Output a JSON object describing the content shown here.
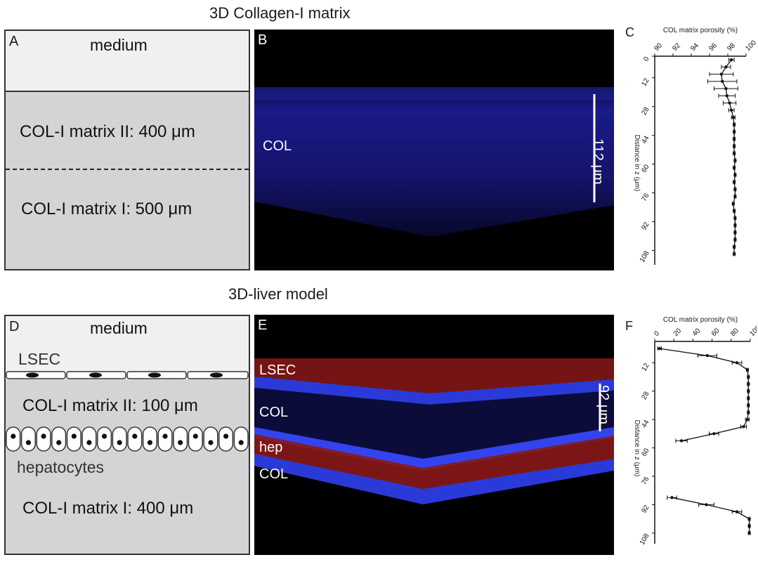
{
  "top_title": "3D Collagen-I matrix",
  "bottom_title": "3D-liver model",
  "panel_a": {
    "letter": "A",
    "medium": "medium",
    "matrix_ii": "COL-I matrix II: 400 μm",
    "matrix_i": "COL-I matrix I: 500 μm"
  },
  "panel_b": {
    "letter": "B",
    "col": "COL",
    "scale": "112 μm"
  },
  "panel_d": {
    "letter": "D",
    "medium": "medium",
    "lsec": "LSEC",
    "matrix_ii": "COL-I matrix II: 100 μm",
    "hepatocytes": "hepatocytes",
    "matrix_i": "COL-I matrix I: 400 μm"
  },
  "panel_e": {
    "letter": "E",
    "lsec": "LSEC",
    "col1": "COL",
    "hep": "hep",
    "col2": "COL",
    "scale": "92 μm"
  },
  "chart_data": [
    {
      "panel": "C",
      "type": "line",
      "title": "COL matrix porosity (%)",
      "xlabel": "COL matrix porosity (%)",
      "ylabel": "Distance in z (μm)",
      "x_ticks": [
        "90",
        "92",
        "94",
        "96",
        "98",
        "100"
      ],
      "y_ticks": [
        "0",
        "12",
        "28",
        "44",
        "60",
        "76",
        "92",
        "108"
      ],
      "xlim": [
        90,
        100
      ],
      "ylim": [
        0,
        116
      ],
      "x_axis_position": "top",
      "series": [
        {
          "points": [
            {
              "z": 2,
              "porosity": 98.4,
              "err": 0.3
            },
            {
              "z": 6,
              "porosity": 97.8,
              "err": 0.5
            },
            {
              "z": 10,
              "porosity": 97.3,
              "err": 1.3
            },
            {
              "z": 14,
              "porosity": 97.4,
              "err": 1.6
            },
            {
              "z": 18,
              "porosity": 97.8,
              "err": 1.3
            },
            {
              "z": 22,
              "porosity": 97.9,
              "err": 0.9
            },
            {
              "z": 26,
              "porosity": 98.2,
              "err": 0.7
            },
            {
              "z": 30,
              "porosity": 98.4,
              "err": 0.3
            },
            {
              "z": 34,
              "porosity": 98.6,
              "err": 0.2
            },
            {
              "z": 38,
              "porosity": 98.7,
              "err": 0.1
            },
            {
              "z": 42,
              "porosity": 98.7,
              "err": 0.1
            },
            {
              "z": 46,
              "porosity": 98.7,
              "err": 0.1
            },
            {
              "z": 50,
              "porosity": 98.7,
              "err": 0.1
            },
            {
              "z": 54,
              "porosity": 98.7,
              "err": 0.1
            },
            {
              "z": 58,
              "porosity": 98.8,
              "err": 0.1
            },
            {
              "z": 62,
              "porosity": 98.7,
              "err": 0.1
            },
            {
              "z": 66,
              "porosity": 98.8,
              "err": 0.1
            },
            {
              "z": 70,
              "porosity": 98.7,
              "err": 0.1
            },
            {
              "z": 74,
              "porosity": 98.8,
              "err": 0.1
            },
            {
              "z": 78,
              "porosity": 98.8,
              "err": 0.1
            },
            {
              "z": 82,
              "porosity": 98.6,
              "err": 0.1
            },
            {
              "z": 86,
              "porosity": 98.7,
              "err": 0.1
            },
            {
              "z": 90,
              "porosity": 98.8,
              "err": 0.1
            },
            {
              "z": 94,
              "porosity": 98.8,
              "err": 0.1
            },
            {
              "z": 98,
              "porosity": 98.8,
              "err": 0.1
            },
            {
              "z": 102,
              "porosity": 98.8,
              "err": 0.1
            },
            {
              "z": 106,
              "porosity": 98.7,
              "err": 0.1
            },
            {
              "z": 110,
              "porosity": 98.7,
              "err": 0.1
            }
          ]
        }
      ]
    },
    {
      "panel": "F",
      "type": "line",
      "title": "COL matrix porosity (%)",
      "xlabel": "COL matrix porosity (%)",
      "ylabel": "Distance in z (μm)",
      "x_ticks": [
        "0",
        "20",
        "40",
        "60",
        "80",
        "100"
      ],
      "y_ticks": [
        "12",
        "28",
        "44",
        "60",
        "76",
        "92",
        "108"
      ],
      "xlim": [
        0,
        100
      ],
      "ylim": [
        0,
        114
      ],
      "x_axis_position": "top",
      "series": [
        {
          "points": [
            {
              "z": 4,
              "porosity": 5,
              "err": 2
            },
            {
              "z": 8,
              "porosity": 55,
              "err": 10
            },
            {
              "z": 12,
              "porosity": 86,
              "err": 5
            },
            {
              "z": 16,
              "porosity": 97,
              "err": 1
            },
            {
              "z": 20,
              "porosity": 98,
              "err": 1
            },
            {
              "z": 24,
              "porosity": 98,
              "err": 1
            },
            {
              "z": 28,
              "porosity": 98,
              "err": 1
            },
            {
              "z": 32,
              "porosity": 98,
              "err": 1
            },
            {
              "z": 36,
              "porosity": 98,
              "err": 1
            },
            {
              "z": 40,
              "porosity": 98,
              "err": 1
            },
            {
              "z": 44,
              "porosity": 97,
              "err": 2
            },
            {
              "z": 48,
              "porosity": 93,
              "err": 3
            },
            {
              "z": 52,
              "porosity": 62,
              "err": 5
            },
            {
              "z": 56,
              "porosity": 28,
              "err": 6
            }
          ]
        },
        {
          "points": [
            {
              "z": 88,
              "porosity": 18,
              "err": 5
            },
            {
              "z": 92,
              "porosity": 54,
              "err": 8
            },
            {
              "z": 96,
              "porosity": 86,
              "err": 5
            },
            {
              "z": 100,
              "porosity": 99,
              "err": 1
            },
            {
              "z": 104,
              "porosity": 99,
              "err": 1
            },
            {
              "z": 108,
              "porosity": 99,
              "err": 1
            }
          ]
        }
      ]
    }
  ]
}
